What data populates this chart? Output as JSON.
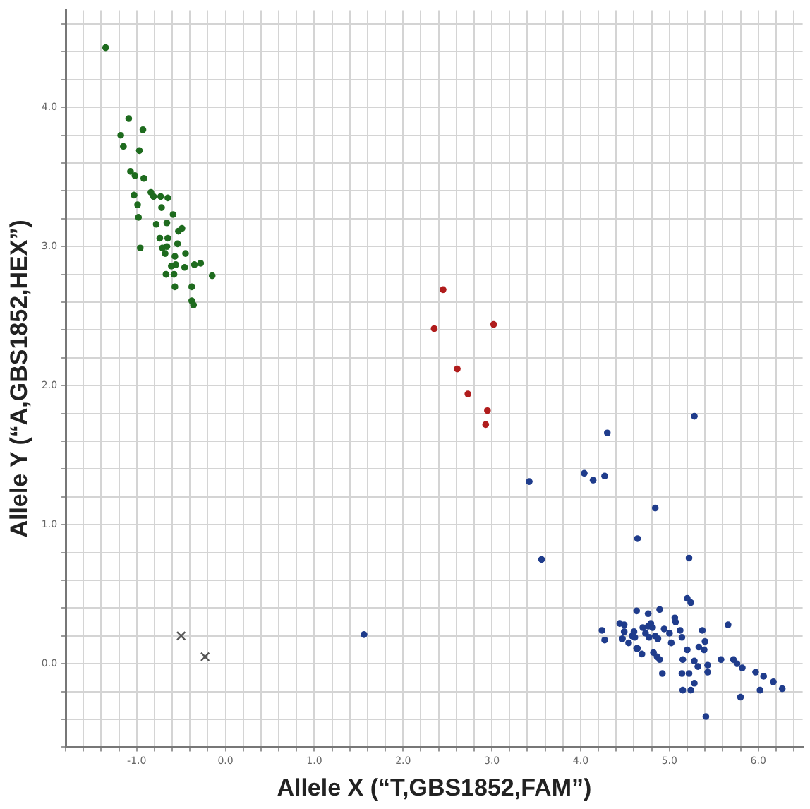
{
  "chart_data": {
    "type": "scatter",
    "xlabel": "Allele X (“T,GBS1852,FAM”)",
    "ylabel": "Allele Y (“A,GBS1852,HEX”)",
    "grid": true,
    "legend": false,
    "marker": "circle",
    "xlim": [
      -1.8,
      6.5
    ],
    "ylim": [
      -0.6,
      4.7
    ],
    "xticks": [
      {
        "value": -1.8,
        "label": null
      },
      {
        "value": -1.6,
        "label": null
      },
      {
        "value": -1.4,
        "label": null
      },
      {
        "value": -1.2,
        "label": null
      },
      {
        "value": -1,
        "label": "-1.0"
      },
      {
        "value": -0.8,
        "label": null
      },
      {
        "value": -0.6,
        "label": null
      },
      {
        "value": -0.4,
        "label": null
      },
      {
        "value": -0.2,
        "label": null
      },
      {
        "value": 0,
        "label": "0.0"
      },
      {
        "value": 0.2,
        "label": null
      },
      {
        "value": 0.4,
        "label": null
      },
      {
        "value": 0.6,
        "label": null
      },
      {
        "value": 0.8,
        "label": null
      },
      {
        "value": 1,
        "label": "1.0"
      },
      {
        "value": 1.2,
        "label": null
      },
      {
        "value": 1.4,
        "label": null
      },
      {
        "value": 1.6,
        "label": null
      },
      {
        "value": 1.8,
        "label": null
      },
      {
        "value": 2,
        "label": "2.0"
      },
      {
        "value": 2.2,
        "label": null
      },
      {
        "value": 2.4,
        "label": null
      },
      {
        "value": 2.6,
        "label": null
      },
      {
        "value": 2.8,
        "label": null
      },
      {
        "value": 3,
        "label": "3.0"
      },
      {
        "value": 3.2,
        "label": null
      },
      {
        "value": 3.4,
        "label": null
      },
      {
        "value": 3.6,
        "label": null
      },
      {
        "value": 3.8,
        "label": null
      },
      {
        "value": 4,
        "label": "4.0"
      },
      {
        "value": 4.2,
        "label": null
      },
      {
        "value": 4.4,
        "label": null
      },
      {
        "value": 4.6,
        "label": null
      },
      {
        "value": 4.8,
        "label": null
      },
      {
        "value": 5,
        "label": "5.0"
      },
      {
        "value": 5.2,
        "label": null
      },
      {
        "value": 5.4,
        "label": null
      },
      {
        "value": 5.6,
        "label": null
      },
      {
        "value": 5.8,
        "label": null
      },
      {
        "value": 6,
        "label": "6.0"
      },
      {
        "value": 6.2,
        "label": null
      },
      {
        "value": 6.4,
        "label": null
      }
    ],
    "yticks": [
      {
        "value": -0.6,
        "label": null
      },
      {
        "value": -0.4,
        "label": null
      },
      {
        "value": -0.2,
        "label": null
      },
      {
        "value": 0,
        "label": "0.0"
      },
      {
        "value": 0.2,
        "label": null
      },
      {
        "value": 0.4,
        "label": null
      },
      {
        "value": 0.6,
        "label": null
      },
      {
        "value": 0.8,
        "label": null
      },
      {
        "value": 1,
        "label": "1.0"
      },
      {
        "value": 1.2,
        "label": null
      },
      {
        "value": 1.4,
        "label": null
      },
      {
        "value": 1.6,
        "label": null
      },
      {
        "value": 1.8,
        "label": null
      },
      {
        "value": 2,
        "label": "2.0"
      },
      {
        "value": 2.2,
        "label": null
      },
      {
        "value": 2.4,
        "label": null
      },
      {
        "value": 2.6,
        "label": null
      },
      {
        "value": 2.8,
        "label": null
      },
      {
        "value": 3,
        "label": "3.0"
      },
      {
        "value": 3.2,
        "label": null
      },
      {
        "value": 3.4,
        "label": null
      },
      {
        "value": 3.6,
        "label": null
      },
      {
        "value": 3.8,
        "label": null
      },
      {
        "value": 4,
        "label": "4.0"
      },
      {
        "value": 4.2,
        "label": null
      },
      {
        "value": 4.4,
        "label": null
      },
      {
        "value": 4.6,
        "label": null
      }
    ],
    "series": [
      {
        "color": "#1e6b1e",
        "x": [
          -1.35,
          -1.09,
          -0.93,
          -1.18,
          -1.15,
          -0.97,
          -1.07,
          -1.02,
          -0.92,
          -1.03,
          -0.84,
          -0.81,
          -0.73,
          -0.65,
          -0.99,
          -0.72,
          -0.59,
          -0.98,
          -0.78,
          -0.66,
          -0.53,
          -0.49,
          -0.74,
          -0.65,
          -0.96,
          -0.71,
          -0.66,
          -0.54,
          -0.68,
          -0.57,
          -0.45,
          -0.56,
          -0.61,
          -0.46,
          -0.35,
          -0.28,
          -0.67,
          -0.58,
          -0.15,
          -0.57,
          -0.38,
          -0.38,
          -0.36
        ],
        "values": [
          4.43,
          3.92,
          3.84,
          3.8,
          3.72,
          3.69,
          3.54,
          3.51,
          3.49,
          3.37,
          3.39,
          3.36,
          3.36,
          3.35,
          3.3,
          3.28,
          3.23,
          3.21,
          3.16,
          3.17,
          3.11,
          3.13,
          3.06,
          3.06,
          2.99,
          2.99,
          3.0,
          3.02,
          2.95,
          2.93,
          2.95,
          2.87,
          2.86,
          2.85,
          2.87,
          2.88,
          2.8,
          2.8,
          2.79,
          2.71,
          2.71,
          2.61,
          2.58
        ]
      },
      {
        "color": "#b01c1c",
        "x": [
          2.45,
          2.35,
          3.02,
          2.61,
          2.73,
          2.95,
          2.93
        ],
        "values": [
          2.69,
          2.41,
          2.44,
          2.12,
          1.94,
          1.82,
          1.72
        ]
      },
      {
        "color": "#1f3c8c",
        "x": [
          1.56,
          5.28,
          4.3,
          4.04,
          4.14,
          4.27,
          3.42,
          4.84,
          4.64,
          3.56,
          5.22,
          5.2,
          5.24,
          5.66,
          4.63,
          4.76,
          4.89,
          5.06,
          5.07,
          4.24,
          4.27,
          4.44,
          4.49,
          4.49,
          4.47,
          4.54,
          4.58,
          4.61,
          4.6,
          4.63,
          4.69,
          4.7,
          4.73,
          4.76,
          4.79,
          4.81,
          4.77,
          4.84,
          4.87,
          4.82,
          4.86,
          4.89,
          4.92,
          4.94,
          5.0,
          5.02,
          5.12,
          5.14,
          5.2,
          5.15,
          5.14,
          5.22,
          5.28,
          5.33,
          5.4,
          5.39,
          5.37,
          5.32,
          5.43,
          5.43,
          5.28,
          5.15,
          5.24,
          5.41,
          5.58,
          5.72,
          5.76,
          5.82,
          5.97,
          6.06,
          6.17,
          6.27,
          6.02,
          5.8,
          4.64
        ],
        "values": [
          0.21,
          1.78,
          1.66,
          1.37,
          1.32,
          1.35,
          1.31,
          1.12,
          0.9,
          0.75,
          0.76,
          0.47,
          0.44,
          0.28,
          0.38,
          0.36,
          0.39,
          0.33,
          0.3,
          0.24,
          0.17,
          0.29,
          0.28,
          0.23,
          0.18,
          0.15,
          0.2,
          0.19,
          0.23,
          0.11,
          0.07,
          0.26,
          0.22,
          0.27,
          0.29,
          0.26,
          0.19,
          0.2,
          0.18,
          0.08,
          0.05,
          0.03,
          -0.07,
          0.25,
          0.22,
          0.15,
          0.24,
          0.19,
          0.1,
          0.03,
          -0.07,
          -0.07,
          0.02,
          0.12,
          0.16,
          0.1,
          0.24,
          -0.02,
          -0.01,
          -0.06,
          -0.14,
          -0.19,
          -0.19,
          -0.38,
          0.03,
          0.03,
          0.0,
          -0.03,
          -0.06,
          -0.09,
          -0.13,
          -0.18,
          -0.19,
          -0.24,
          0.11
        ]
      },
      {
        "color": "#555555",
        "marker": "cross",
        "x": [
          -0.5,
          -0.23
        ],
        "values": [
          0.2,
          0.05
        ]
      }
    ]
  }
}
